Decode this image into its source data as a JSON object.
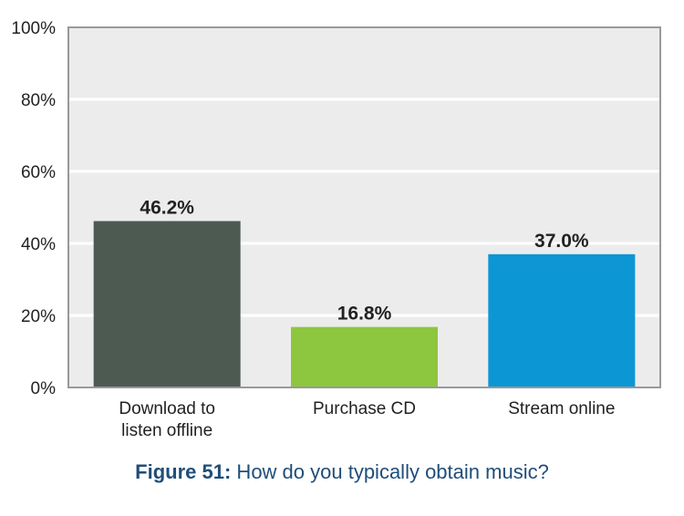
{
  "chart_data": {
    "type": "bar",
    "categories": [
      [
        "Download to",
        "listen offline"
      ],
      [
        "Purchase CD"
      ],
      [
        "Stream online"
      ]
    ],
    "values": [
      46.2,
      16.8,
      37.0
    ],
    "value_labels": [
      "46.2%",
      "16.8%",
      "37.0%"
    ],
    "bar_colors": [
      "#4d5a52",
      "#8dc63f",
      "#0c96d4"
    ],
    "ylim": [
      0,
      100
    ],
    "yticks": [
      0,
      20,
      40,
      60,
      80,
      100
    ],
    "ytick_labels": [
      "0%",
      "20%",
      "40%",
      "60%",
      "80%",
      "100%"
    ],
    "grid": true,
    "plot_background": "#ececec",
    "grid_color": "#ffffff",
    "border_color": "#999999"
  },
  "caption": {
    "label": "Figure 51:",
    "text": " How do you typically obtain music?"
  }
}
